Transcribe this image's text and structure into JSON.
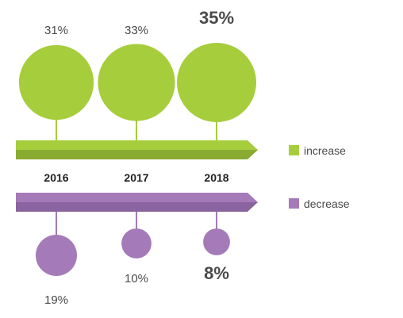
{
  "chart_data": {
    "type": "bubble-timeline",
    "categories": [
      "2016",
      "2017",
      "2018"
    ],
    "series": [
      {
        "name": "increase",
        "color": "#a6cd3c",
        "color_dark": "#8aab31",
        "values": [
          31,
          33,
          35
        ],
        "labels": [
          "31%",
          "33%",
          "35%"
        ],
        "highlight_index": 2
      },
      {
        "name": "decrease",
        "color": "#a47ab8",
        "color_dark": "#8a649e",
        "values": [
          19,
          10,
          8
        ],
        "labels": [
          "19%",
          "10%",
          "8%"
        ],
        "highlight_index": 2
      }
    ]
  }
}
